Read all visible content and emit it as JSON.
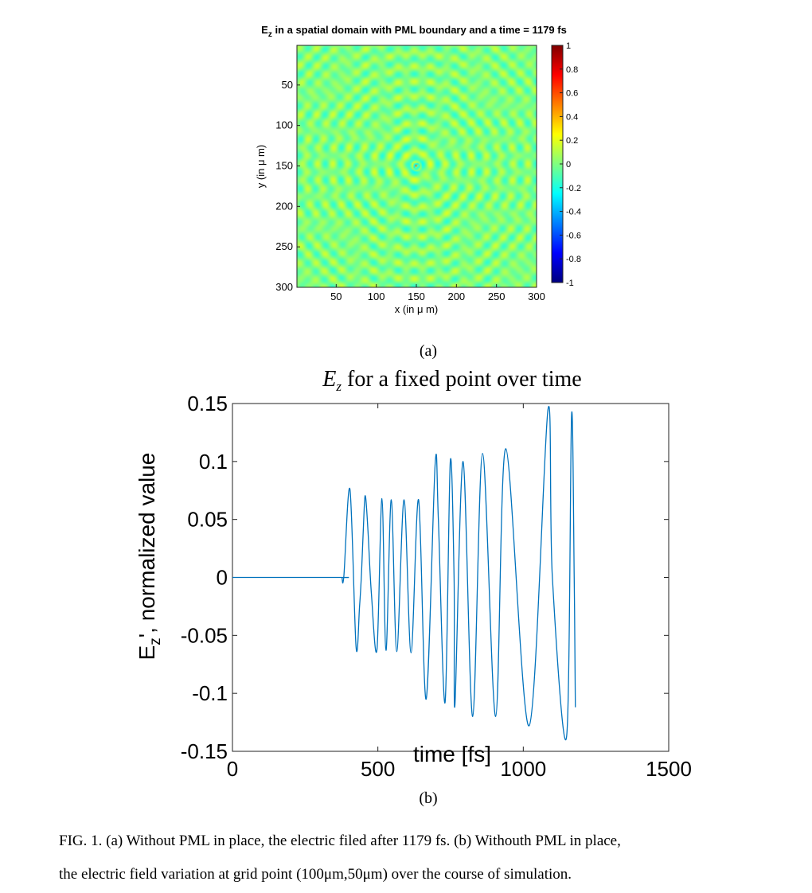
{
  "figure_a": {
    "title_main": "E",
    "title_sub": "z",
    "title_rest": " in a spatial domain with PML boundary and a time = 1179 fs",
    "xlabel": "x (in μ m)",
    "ylabel": "y (in μ m)",
    "sublabel": "(a)"
  },
  "figure_b": {
    "title_main": "E",
    "title_sub": "z",
    "title_rest": " for a fixed point over time",
    "ylabel_main": "E",
    "ylabel_sub": "z",
    "ylabel_rest": "', normalized value",
    "xlabel": "time [fs]",
    "sublabel": "(b)"
  },
  "caption": {
    "line1": "FIG. 1. (a) Without PML in place, the electric filed after 1179 fs. (b) Withouth PML in place,",
    "line2": "the electric field variation at grid point (100μm,50μm) over the course of simulation."
  },
  "chart_data": [
    {
      "type": "heatmap",
      "title": "E_z in a spatial domain with PML boundary and a time = 1179 fs",
      "xlabel": "x (in μ m)",
      "ylabel": "y (in μ m)",
      "xlim": [
        1,
        300
      ],
      "ylim": [
        1,
        300
      ],
      "y_reversed": true,
      "x_ticks": [
        50,
        100,
        150,
        200,
        250,
        300
      ],
      "y_ticks": [
        50,
        100,
        150,
        200,
        250,
        300
      ],
      "source_center": [
        150,
        150
      ],
      "colorbar": {
        "range": [
          -1,
          1
        ],
        "ticks": [
          "1",
          "0.8",
          "0.6",
          "0.4",
          "0.2",
          "0",
          "-0.2",
          "-0.4",
          "-0.6",
          "-0.8",
          "-1"
        ],
        "colormap": "jet"
      }
    },
    {
      "type": "line",
      "title": "E_z for a fixed point over time",
      "xlabel": "time [fs]",
      "ylabel": "E_z', normalized value",
      "xlim": [
        0,
        1500
      ],
      "ylim": [
        -0.15,
        0.15
      ],
      "x_ticks": [
        "0",
        "500",
        "1000",
        "1500"
      ],
      "y_ticks": [
        "0.15",
        "0.1",
        "0.05",
        "0",
        "-0.05",
        "-0.1",
        "-0.15"
      ],
      "grid": false,
      "line_color": "#0072bd",
      "series": [
        {
          "x": [
            0,
            370,
            376,
            383,
            404,
            425,
            437,
            444,
            453,
            458,
            466,
            478,
            497,
            514,
            528,
            546,
            565,
            590,
            614,
            640,
            666,
            697,
            708,
            731,
            749,
            762,
            765,
            793,
            826,
            860,
            905,
            940,
            1020,
            1085,
            1100,
            1149,
            1166,
            1175,
            1179
          ],
          "y": [
            0,
            0,
            0.0,
            0.001,
            0.076,
            -0.06,
            -0.025,
            0.005,
            0.06,
            0.069,
            0.04,
            -0.015,
            -0.062,
            0.068,
            -0.063,
            0.067,
            -0.064,
            0.067,
            -0.065,
            0.067,
            -0.105,
            0.098,
            0.05,
            -0.108,
            0.1,
            0.0,
            -0.11,
            0.1,
            -0.12,
            0.107,
            -0.12,
            0.111,
            -0.128,
            0.145,
            0.0,
            -0.137,
            0.14,
            0.0,
            -0.112
          ]
        }
      ]
    }
  ]
}
